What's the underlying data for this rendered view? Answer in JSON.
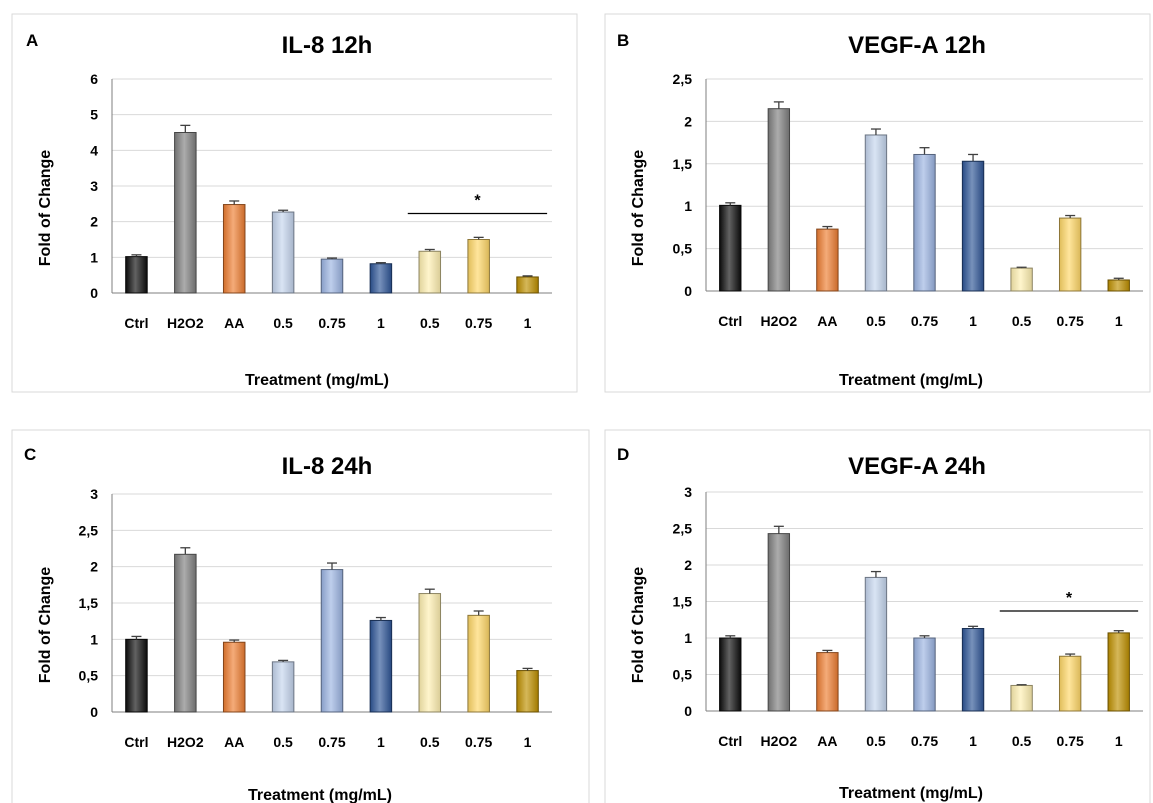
{
  "palette": [
    "#0d0d0d",
    "#7f7f7f",
    "#ee7d31",
    "#c5d5ee",
    "#9bb4e2",
    "#2e5597",
    "#fff0b0",
    "#ffd766",
    "#bf9000"
  ],
  "chart_data": [
    {
      "type": "bar",
      "panel": "A",
      "title": "IL-8  12h",
      "xlabel": "Treatment (mg/mL)",
      "ylabel": "Fold of Change",
      "categories": [
        "Ctrl",
        "H2O2",
        "AA",
        "0.5",
        "0.75",
        "1",
        "0.5",
        "0.75",
        "1"
      ],
      "values": [
        1.02,
        4.5,
        2.48,
        2.27,
        0.95,
        0.82,
        1.17,
        1.5,
        0.45
      ],
      "errors": [
        0.05,
        0.2,
        0.1,
        0.05,
        0.03,
        0.03,
        0.05,
        0.06,
        0.03
      ],
      "ylim": [
        0,
        6
      ],
      "yticks": [
        "0",
        "1",
        "2",
        "3",
        "4",
        "5",
        "6"
      ],
      "ytick_values": [
        0,
        1,
        2,
        3,
        4,
        5,
        6
      ],
      "grid": true,
      "significance": {
        "label": "*",
        "from": 6,
        "to": 8,
        "y": 2.23
      }
    },
    {
      "type": "bar",
      "panel": "B",
      "title": "VEGF-A 12h",
      "xlabel": "Treatment (mg/mL)",
      "ylabel": "Fold of Change",
      "categories": [
        "Ctrl",
        "H2O2",
        "AA",
        "0.5",
        "0.75",
        "1",
        "0.5",
        "0.75",
        "1"
      ],
      "values": [
        1.01,
        2.15,
        0.73,
        1.84,
        1.61,
        1.53,
        0.27,
        0.86,
        0.13
      ],
      "errors": [
        0.03,
        0.08,
        0.03,
        0.07,
        0.08,
        0.08,
        0.01,
        0.03,
        0.02
      ],
      "ylim": [
        0,
        2.5
      ],
      "yticks": [
        "0",
        "0,5",
        "1",
        "1,5",
        "2",
        "2,5"
      ],
      "ytick_values": [
        0,
        0.5,
        1,
        1.5,
        2,
        2.5
      ],
      "grid": true
    },
    {
      "type": "bar",
      "panel": "C",
      "title": "IL-8  24h",
      "xlabel": "Treatment (mg/mL)",
      "ylabel": "Fold of Change",
      "categories": [
        "Ctrl",
        "H2O2",
        "AA",
        "0.5",
        "0.75",
        "1",
        "0.5",
        "0.75",
        "1"
      ],
      "values": [
        1.0,
        2.17,
        0.96,
        0.69,
        1.96,
        1.26,
        1.63,
        1.33,
        0.57
      ],
      "errors": [
        0.04,
        0.09,
        0.03,
        0.02,
        0.09,
        0.04,
        0.06,
        0.06,
        0.03
      ],
      "ylim": [
        0,
        3
      ],
      "yticks": [
        "0",
        "0,5",
        "1",
        "1,5",
        "2",
        "2,5",
        "3"
      ],
      "ytick_values": [
        0,
        0.5,
        1,
        1.5,
        2,
        2.5,
        3
      ],
      "grid": true
    },
    {
      "type": "bar",
      "panel": "D",
      "title": "VEGF-A  24h",
      "xlabel": "Treatment (mg/mL)",
      "ylabel": "Fold of Change",
      "categories": [
        "Ctrl",
        "H2O2",
        "AA",
        "0.5",
        "0.75",
        "1",
        "0.5",
        "0.75",
        "1"
      ],
      "values": [
        1.0,
        2.43,
        0.8,
        1.83,
        1.0,
        1.13,
        0.35,
        0.75,
        1.07
      ],
      "errors": [
        0.03,
        0.1,
        0.03,
        0.08,
        0.03,
        0.03,
        0.01,
        0.03,
        0.03
      ],
      "ylim": [
        0,
        3
      ],
      "yticks": [
        "0",
        "0,5",
        "1",
        "1,5",
        "2",
        "2,5",
        "3"
      ],
      "ytick_values": [
        0,
        0.5,
        1,
        1.5,
        2,
        2.5,
        3
      ],
      "grid": true,
      "significance": {
        "label": "*",
        "from": 6,
        "to": 8,
        "y": 1.37
      }
    }
  ]
}
